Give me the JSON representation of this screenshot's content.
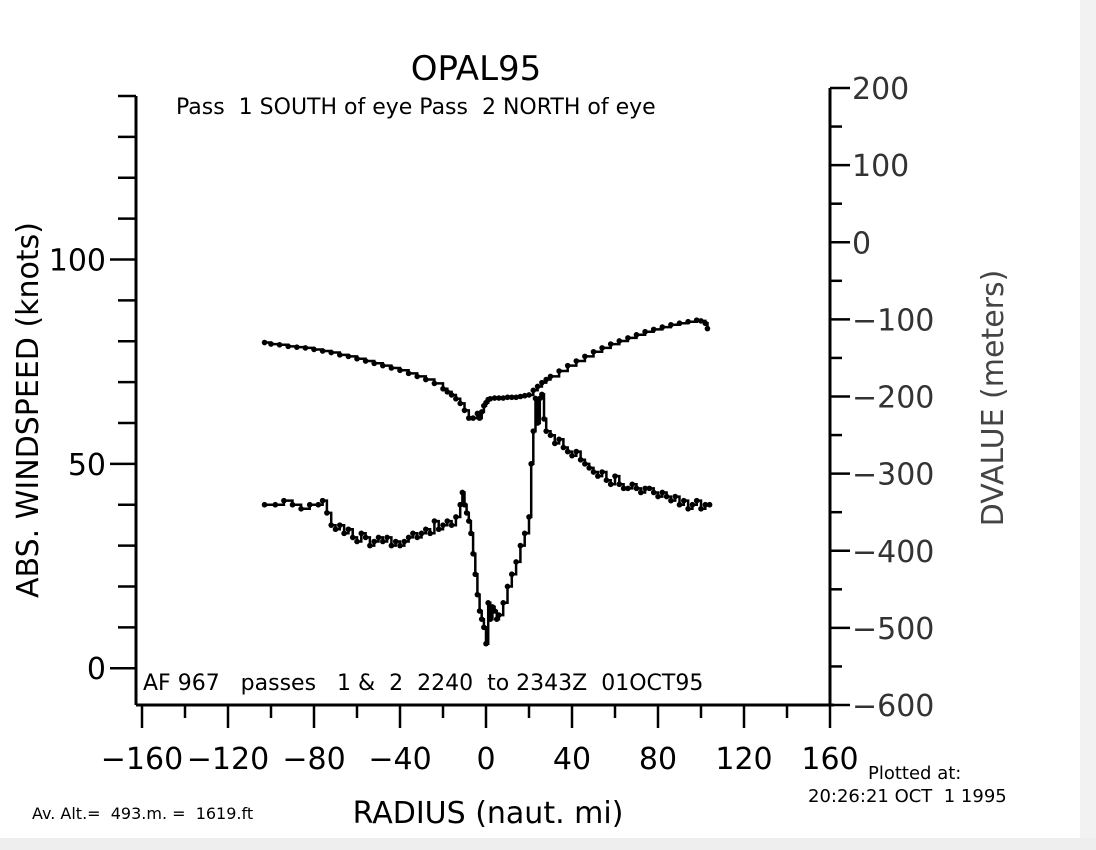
{
  "chart_data": {
    "type": "line",
    "title": "OPAL95",
    "subtitle": "Pass  1 SOUTH of eye Pass  2 NORTH of eye",
    "xlabel": "RADIUS (naut. mi)",
    "ylabel": "ABS. WINDSPEED (knots)",
    "y2label": "DVALUE (meters)",
    "xlim": [
      -160,
      160
    ],
    "ylim": [
      -9,
      140
    ],
    "y2lim": [
      -600,
      200
    ],
    "x_ticks": [
      "−160",
      "−120",
      "−80",
      "−40",
      "0",
      "40",
      "80",
      "120",
      "160"
    ],
    "y_ticks": [
      "0",
      "50",
      "100"
    ],
    "y2_ticks": [
      "200",
      "100",
      "0",
      "−100",
      "−200",
      "−300",
      "−400",
      "−500",
      "−600"
    ],
    "annotation": "AF 967   passes   1 &  2  2240  to 2343Z  01OCT95",
    "footer_left": "Av. Alt.=  493.m. =  1619.ft",
    "footer_right_1": "Plotted at:",
    "footer_right_2": "20:26:21 OCT  1 1995",
    "series": [
      {
        "axis": "left",
        "x": [
          -103,
          -98,
          -94,
          -90,
          -86,
          -82,
          -78,
          -76,
          -74,
          -72,
          -70,
          -68,
          -66,
          -64,
          -62,
          -60,
          -58,
          -56,
          -54,
          -52,
          -50,
          -48,
          -46,
          -44,
          -42,
          -40,
          -38,
          -36,
          -34,
          -32,
          -30,
          -28,
          -26,
          -24,
          -22,
          -20,
          -18,
          -16,
          -14,
          -12,
          -11,
          -10,
          -9,
          -8,
          -7,
          -6,
          -5,
          -4,
          -3,
          -2,
          -1,
          0,
          1,
          2,
          3,
          4,
          5,
          6,
          8,
          10,
          12,
          14,
          16,
          18,
          20,
          21,
          22,
          23,
          24,
          25,
          26,
          27,
          28,
          30,
          32,
          34,
          36,
          38,
          40,
          42,
          44,
          46,
          48,
          50,
          52,
          54,
          56,
          58,
          60,
          62,
          64,
          66,
          68,
          70,
          72,
          74,
          76,
          78,
          80,
          82,
          84,
          86,
          88,
          90,
          92,
          94,
          96,
          98,
          100,
          102,
          104
        ],
        "values": [
          40,
          40,
          41,
          40,
          39,
          40,
          40,
          41,
          38,
          35,
          34,
          35,
          33,
          34,
          32,
          31,
          33,
          32,
          30,
          31,
          32,
          31,
          32,
          30,
          31,
          30,
          31,
          32,
          33,
          32,
          33,
          34,
          33,
          36,
          34,
          35,
          36,
          35,
          37,
          40,
          43,
          40,
          38,
          36,
          33,
          28,
          23,
          18,
          14,
          12,
          10,
          6,
          16,
          12,
          15,
          14,
          12,
          13,
          16,
          20,
          23,
          26,
          30,
          33,
          37,
          50,
          58,
          66,
          60,
          66,
          67,
          61,
          58,
          57,
          55,
          56,
          54,
          53,
          52,
          53,
          51,
          50,
          49,
          48,
          47,
          48,
          46,
          45,
          47,
          45,
          44,
          44,
          45,
          44,
          43,
          44,
          44,
          43,
          42,
          43,
          42,
          41,
          42,
          40,
          41,
          39,
          40,
          41,
          39,
          40,
          40
        ]
      },
      {
        "axis": "right",
        "x": [
          -103,
          -100,
          -96,
          -92,
          -88,
          -84,
          -80,
          -76,
          -72,
          -68,
          -64,
          -60,
          -56,
          -52,
          -48,
          -44,
          -40,
          -36,
          -32,
          -28,
          -24,
          -20,
          -18,
          -16,
          -14,
          -12,
          -10,
          -8,
          -6,
          -4,
          -3,
          -2,
          -1,
          0,
          1,
          2,
          4,
          6,
          8,
          10,
          12,
          14,
          16,
          18,
          20,
          22,
          24,
          26,
          28,
          30,
          34,
          38,
          42,
          46,
          50,
          54,
          58,
          62,
          66,
          70,
          74,
          78,
          82,
          86,
          90,
          94,
          98,
          100,
          102,
          103
        ],
        "values": [
          -130,
          -132,
          -133,
          -135,
          -136,
          -137,
          -139,
          -141,
          -143,
          -146,
          -148,
          -151,
          -154,
          -157,
          -160,
          -163,
          -166,
          -170,
          -174,
          -178,
          -183,
          -190,
          -194,
          -198,
          -203,
          -209,
          -218,
          -228,
          -228,
          -222,
          -228,
          -220,
          -212,
          -208,
          -204,
          -203,
          -202,
          -202,
          -202,
          -201,
          -201,
          -201,
          -200,
          -199,
          -198,
          -192,
          -187,
          -182,
          -178,
          -174,
          -167,
          -160,
          -154,
          -148,
          -142,
          -137,
          -132,
          -128,
          -124,
          -120,
          -116,
          -113,
          -110,
          -107,
          -105,
          -103,
          -101,
          -102,
          -105,
          -112
        ]
      }
    ]
  }
}
